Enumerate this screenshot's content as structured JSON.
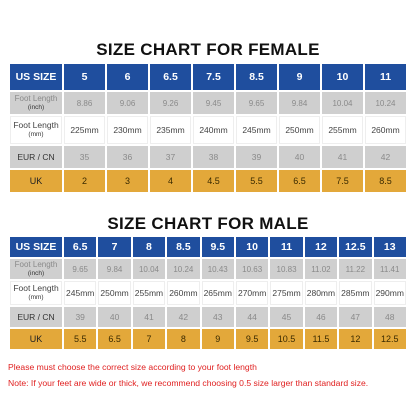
{
  "female": {
    "title": "SIZE CHART FOR FEMALE",
    "row_labels": {
      "us": "US SIZE",
      "foot_length_inch": "Foot Length",
      "foot_length_inch_unit": "(inch)",
      "foot_length_mm": "Foot Length",
      "foot_length_mm_unit": "(mm)",
      "eur": "EUR / CN",
      "uk": "UK"
    },
    "us": [
      "5",
      "6",
      "6.5",
      "7.5",
      "8.5",
      "9",
      "10",
      "11"
    ],
    "inch": [
      "8.86",
      "9.06",
      "9.26",
      "9.45",
      "9.65",
      "9.84",
      "10.04",
      "10.24"
    ],
    "mm": [
      "225mm",
      "230mm",
      "235mm",
      "240mm",
      "245mm",
      "250mm",
      "255mm",
      "260mm"
    ],
    "eur": [
      "35",
      "36",
      "37",
      "38",
      "39",
      "40",
      "41",
      "42"
    ],
    "uk": [
      "2",
      "3",
      "4",
      "4.5",
      "5.5",
      "6.5",
      "7.5",
      "8.5"
    ]
  },
  "male": {
    "title": "SIZE CHART FOR MALE",
    "row_labels": {
      "us": "US SIZE",
      "foot_length_inch": "Foot Length",
      "foot_length_inch_unit": "(inch)",
      "foot_length_mm": "Foot Length",
      "foot_length_mm_unit": "(mm)",
      "eur": "EUR / CN",
      "uk": "UK"
    },
    "us": [
      "6.5",
      "7",
      "8",
      "8.5",
      "9.5",
      "10",
      "11",
      "12",
      "12.5",
      "13"
    ],
    "inch": [
      "9.65",
      "9.84",
      "10.04",
      "10.24",
      "10.43",
      "10.63",
      "10.83",
      "11.02",
      "11.22",
      "11.41"
    ],
    "mm": [
      "245mm",
      "250mm",
      "255mm",
      "260mm",
      "265mm",
      "270mm",
      "275mm",
      "280mm",
      "285mm",
      "290mm"
    ],
    "eur": [
      "39",
      "40",
      "41",
      "42",
      "43",
      "44",
      "45",
      "46",
      "47",
      "48"
    ],
    "uk": [
      "5.5",
      "6.5",
      "7",
      "8",
      "9",
      "9.5",
      "10.5",
      "11.5",
      "12",
      "12.5"
    ]
  },
  "notes": {
    "line1": "Please must choose the correct size  according to your foot length",
    "line2": "Note: If your feet are wide or thick, we recommend choosing 0.5 size larger than standard size."
  },
  "colors": {
    "header_blue": "#1f4e9e",
    "row_gray": "#cfcfcf",
    "uk_orange": "#e3a83a",
    "note_red": "#e02020"
  }
}
